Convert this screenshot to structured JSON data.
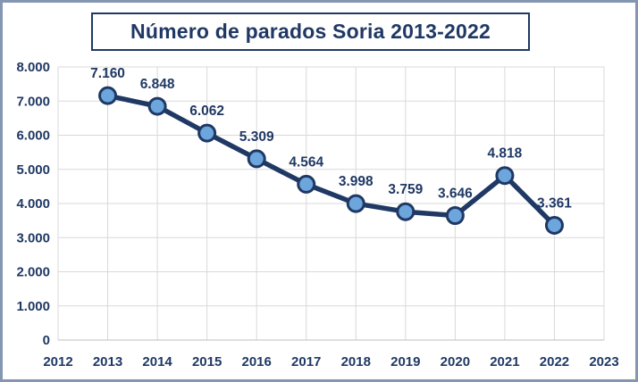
{
  "chart_data": {
    "type": "line",
    "title": "Número de parados Soria 2013-2022",
    "x": [
      2013,
      2014,
      2015,
      2016,
      2017,
      2018,
      2019,
      2020,
      2021,
      2022
    ],
    "series": [
      {
        "name": "Número de parados Soria",
        "values": [
          7160,
          6848,
          6062,
          5309,
          4564,
          3998,
          3759,
          3646,
          4818,
          3361
        ]
      }
    ],
    "data_labels": [
      "7.160",
      "6.848",
      "6.062",
      "5.309",
      "4.564",
      "3.998",
      "3.759",
      "3.646",
      "4.818",
      "3.361"
    ],
    "xlim": [
      2012,
      2023
    ],
    "ylim": [
      0,
      8000
    ],
    "x_tick_labels": [
      "2012",
      "2013",
      "2014",
      "2015",
      "2016",
      "2017",
      "2018",
      "2019",
      "2020",
      "2021",
      "2022",
      "2023"
    ],
    "y_tick_labels": [
      "0",
      "1.000",
      "2.000",
      "3.000",
      "4.000",
      "5.000",
      "6.000",
      "7.000",
      "8.000"
    ],
    "y_tick_values": [
      0,
      1000,
      2000,
      3000,
      4000,
      5000,
      6000,
      7000,
      8000
    ],
    "grid": "both",
    "legend": "none",
    "xlabel": "",
    "ylabel": "",
    "colors": {
      "text_navy": "#1F3864",
      "line": "#1F3864",
      "marker_fill": "#6CA6DC",
      "marker_stroke": "#1F3864",
      "gridline": "#D9D9D9",
      "axis_line": "#BFBFBF",
      "outer_border": "#8496B0",
      "background": "#FFFFFF"
    }
  }
}
